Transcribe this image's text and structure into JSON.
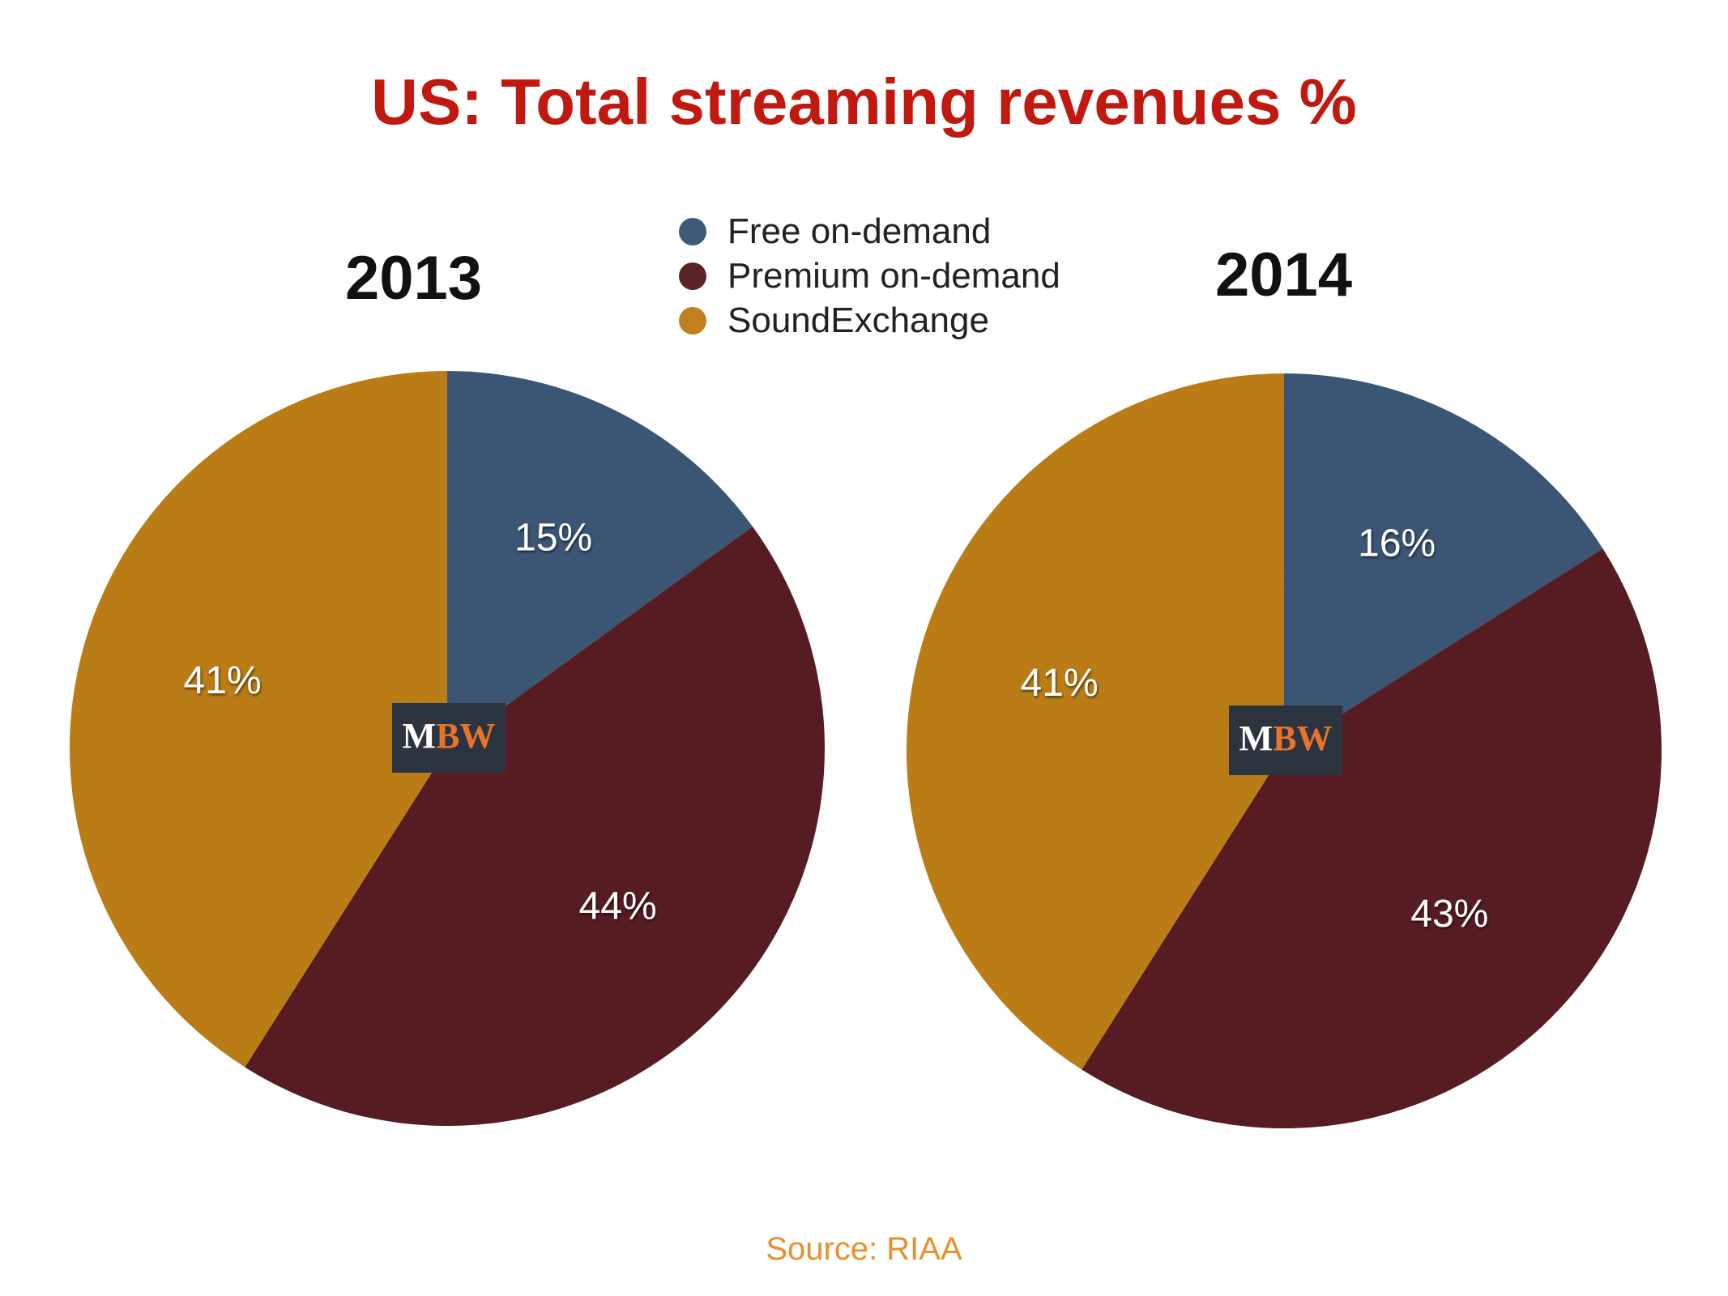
{
  "title": "US: Total streaming revenues %",
  "legend": [
    {
      "label": "Free on-demand",
      "color": "#3e5a78"
    },
    {
      "label": "Premium on-demand",
      "color": "#5a2427"
    },
    {
      "label": "SoundExchange",
      "color": "#c0801f"
    }
  ],
  "badge": {
    "m": "M",
    "bw": "BW"
  },
  "source": "Source: RIAA",
  "chart_data": [
    {
      "type": "pie",
      "title": "2013",
      "categories": [
        "Free on-demand",
        "Premium on-demand",
        "SoundExchange"
      ],
      "values": [
        15,
        44,
        41
      ],
      "labels": [
        "15%",
        "44%",
        "41%"
      ],
      "colors": [
        "#3e5a78",
        "#5a2427",
        "#c0801f"
      ]
    },
    {
      "type": "pie",
      "title": "2014",
      "categories": [
        "Free on-demand",
        "Premium on-demand",
        "SoundExchange"
      ],
      "values": [
        16,
        43,
        41
      ],
      "labels": [
        "16%",
        "43%",
        "41%"
      ],
      "colors": [
        "#3e5a78",
        "#5a2427",
        "#c0801f"
      ]
    }
  ]
}
